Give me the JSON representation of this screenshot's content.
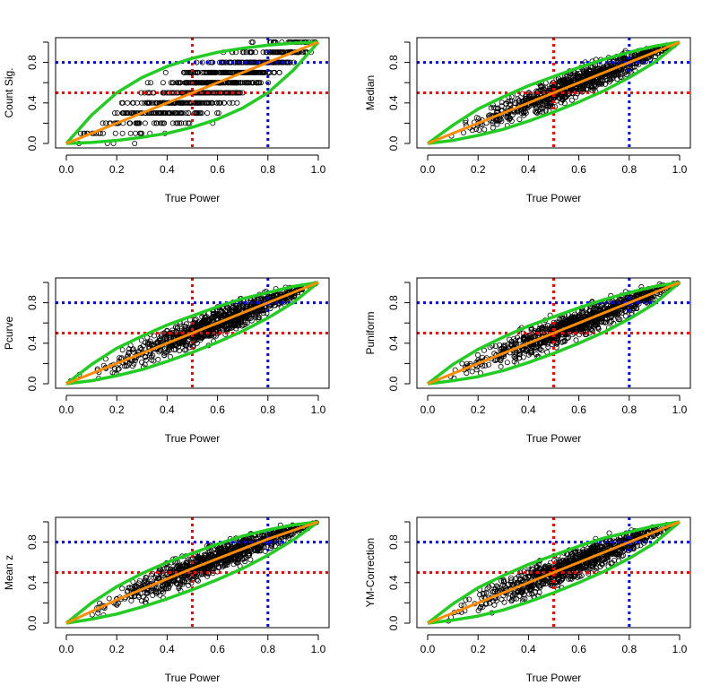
{
  "figure": {
    "layout": "3 rows x 2 columns of scatter panels",
    "reference_lines": [
      {
        "axis": "x",
        "value": 0.5,
        "color": "#ff0000",
        "style": "dotted"
      },
      {
        "axis": "x",
        "value": 0.8,
        "color": "#0000ff",
        "style": "dotted"
      },
      {
        "axis": "y",
        "value": 0.5,
        "color": "#ff0000",
        "style": "dotted"
      },
      {
        "axis": "y",
        "value": 0.8,
        "color": "#0000ff",
        "style": "dotted"
      }
    ],
    "colors": {
      "points": "#000000",
      "fit": "#ff8c00",
      "bounds": "#22cc22",
      "red_ref": "#ff0000",
      "blue_ref": "#0000ff"
    }
  },
  "chart_data": [
    {
      "type": "scatter",
      "title": "",
      "xlabel": "True Power",
      "ylabel": "Count Sig.",
      "xlim": [
        0,
        1
      ],
      "ylim": [
        0,
        1
      ],
      "xticks": [
        "0.0",
        "0.2",
        "0.4",
        "0.6",
        "0.8",
        "1.0"
      ],
      "yticks": [
        "0.0",
        "0.4",
        "0.8"
      ],
      "point_style": "discrete",
      "spread": 0.15,
      "fit_line": [
        [
          0,
          0
        ],
        [
          1,
          1
        ]
      ],
      "upper_bound": [
        [
          0,
          0
        ],
        [
          0.1,
          0.28
        ],
        [
          0.2,
          0.5
        ],
        [
          0.3,
          0.65
        ],
        [
          0.4,
          0.76
        ],
        [
          0.5,
          0.84
        ],
        [
          0.6,
          0.9
        ],
        [
          0.7,
          0.94
        ],
        [
          0.8,
          0.97
        ],
        [
          0.9,
          0.99
        ],
        [
          1,
          1
        ]
      ],
      "lower_bound": [
        [
          0,
          0
        ],
        [
          0.1,
          0.01
        ],
        [
          0.2,
          0.03
        ],
        [
          0.3,
          0.06
        ],
        [
          0.4,
          0.1
        ],
        [
          0.5,
          0.16
        ],
        [
          0.6,
          0.24
        ],
        [
          0.7,
          0.35
        ],
        [
          0.8,
          0.5
        ],
        [
          0.9,
          0.72
        ],
        [
          1,
          1
        ]
      ]
    },
    {
      "type": "scatter",
      "title": "",
      "xlabel": "True Power",
      "ylabel": "Median",
      "xlim": [
        0,
        1
      ],
      "ylim": [
        0,
        1
      ],
      "xticks": [
        "0.0",
        "0.2",
        "0.4",
        "0.6",
        "0.8",
        "1.0"
      ],
      "yticks": [
        "0.0",
        "0.4",
        "0.8"
      ],
      "point_style": "continuous",
      "spread": 0.1,
      "fit_line": [
        [
          0,
          0
        ],
        [
          1,
          1
        ]
      ],
      "upper_bound": [
        [
          0,
          0
        ],
        [
          0.1,
          0.18
        ],
        [
          0.2,
          0.34
        ],
        [
          0.3,
          0.46
        ],
        [
          0.4,
          0.57
        ],
        [
          0.5,
          0.66
        ],
        [
          0.6,
          0.75
        ],
        [
          0.7,
          0.83
        ],
        [
          0.8,
          0.9
        ],
        [
          0.9,
          0.96
        ],
        [
          1,
          1
        ]
      ],
      "lower_bound": [
        [
          0,
          0
        ],
        [
          0.1,
          0.03
        ],
        [
          0.2,
          0.08
        ],
        [
          0.3,
          0.14
        ],
        [
          0.4,
          0.22
        ],
        [
          0.5,
          0.31
        ],
        [
          0.6,
          0.41
        ],
        [
          0.7,
          0.52
        ],
        [
          0.8,
          0.65
        ],
        [
          0.9,
          0.8
        ],
        [
          1,
          1
        ]
      ]
    },
    {
      "type": "scatter",
      "title": "",
      "xlabel": "True Power",
      "ylabel": "Pcurve",
      "xlim": [
        0,
        1
      ],
      "ylim": [
        0,
        1
      ],
      "xticks": [
        "0.0",
        "0.2",
        "0.4",
        "0.6",
        "0.8",
        "1.0"
      ],
      "yticks": [
        "0.0",
        "0.4",
        "0.8"
      ],
      "point_style": "continuous",
      "spread": 0.1,
      "fit_line": [
        [
          0,
          0
        ],
        [
          1,
          1
        ]
      ],
      "upper_bound": [
        [
          0,
          0
        ],
        [
          0.1,
          0.19
        ],
        [
          0.2,
          0.35
        ],
        [
          0.3,
          0.47
        ],
        [
          0.4,
          0.58
        ],
        [
          0.5,
          0.67
        ],
        [
          0.6,
          0.76
        ],
        [
          0.7,
          0.84
        ],
        [
          0.8,
          0.9
        ],
        [
          0.9,
          0.96
        ],
        [
          1,
          1
        ]
      ],
      "lower_bound": [
        [
          0,
          0
        ],
        [
          0.1,
          0.03
        ],
        [
          0.2,
          0.08
        ],
        [
          0.3,
          0.14
        ],
        [
          0.4,
          0.22
        ],
        [
          0.5,
          0.31
        ],
        [
          0.6,
          0.41
        ],
        [
          0.7,
          0.52
        ],
        [
          0.8,
          0.65
        ],
        [
          0.9,
          0.8
        ],
        [
          1,
          1
        ]
      ]
    },
    {
      "type": "scatter",
      "title": "",
      "xlabel": "True Power",
      "ylabel": "Puniform",
      "xlim": [
        0,
        1
      ],
      "ylim": [
        0,
        1
      ],
      "xticks": [
        "0.0",
        "0.2",
        "0.4",
        "0.6",
        "0.8",
        "1.0"
      ],
      "yticks": [
        "0.0",
        "0.4",
        "0.8"
      ],
      "point_style": "continuous",
      "spread": 0.1,
      "fit_line": [
        [
          0,
          0
        ],
        [
          1,
          1
        ]
      ],
      "upper_bound": [
        [
          0,
          0
        ],
        [
          0.1,
          0.19
        ],
        [
          0.2,
          0.34
        ],
        [
          0.3,
          0.46
        ],
        [
          0.4,
          0.57
        ],
        [
          0.5,
          0.66
        ],
        [
          0.6,
          0.75
        ],
        [
          0.7,
          0.83
        ],
        [
          0.8,
          0.9
        ],
        [
          0.9,
          0.96
        ],
        [
          1,
          1
        ]
      ],
      "lower_bound": [
        [
          0,
          0
        ],
        [
          0.1,
          0.03
        ],
        [
          0.2,
          0.07
        ],
        [
          0.3,
          0.13
        ],
        [
          0.4,
          0.21
        ],
        [
          0.5,
          0.3
        ],
        [
          0.6,
          0.4
        ],
        [
          0.7,
          0.51
        ],
        [
          0.8,
          0.64
        ],
        [
          0.9,
          0.79
        ],
        [
          1,
          1
        ]
      ]
    },
    {
      "type": "scatter",
      "title": "",
      "xlabel": "True Power",
      "ylabel": "Mean z",
      "xlim": [
        0,
        1
      ],
      "ylim": [
        0,
        1
      ],
      "xticks": [
        "0.0",
        "0.2",
        "0.4",
        "0.6",
        "0.8",
        "1.0"
      ],
      "yticks": [
        "0.0",
        "0.4",
        "0.8"
      ],
      "point_style": "continuous",
      "spread": 0.1,
      "fit_line": [
        [
          0,
          0
        ],
        [
          0.2,
          0.23
        ],
        [
          0.5,
          0.54
        ],
        [
          0.8,
          0.83
        ],
        [
          1,
          1
        ]
      ],
      "upper_bound": [
        [
          0,
          0
        ],
        [
          0.1,
          0.2
        ],
        [
          0.2,
          0.36
        ],
        [
          0.3,
          0.49
        ],
        [
          0.4,
          0.6
        ],
        [
          0.5,
          0.69
        ],
        [
          0.6,
          0.78
        ],
        [
          0.7,
          0.86
        ],
        [
          0.8,
          0.92
        ],
        [
          0.9,
          0.97
        ],
        [
          1,
          1
        ]
      ],
      "lower_bound": [
        [
          0,
          0
        ],
        [
          0.1,
          0.04
        ],
        [
          0.2,
          0.09
        ],
        [
          0.3,
          0.16
        ],
        [
          0.4,
          0.24
        ],
        [
          0.5,
          0.33
        ],
        [
          0.6,
          0.43
        ],
        [
          0.7,
          0.54
        ],
        [
          0.8,
          0.67
        ],
        [
          0.9,
          0.82
        ],
        [
          1,
          1
        ]
      ]
    },
    {
      "type": "scatter",
      "title": "",
      "xlabel": "True Power",
      "ylabel": "YM-Correction",
      "xlim": [
        0,
        1
      ],
      "ylim": [
        0,
        1
      ],
      "xticks": [
        "0.0",
        "0.2",
        "0.4",
        "0.6",
        "0.8",
        "1.0"
      ],
      "yticks": [
        "0.0",
        "0.4",
        "0.8"
      ],
      "point_style": "continuous",
      "spread": 0.1,
      "fit_line": [
        [
          0,
          0
        ],
        [
          1,
          1
        ]
      ],
      "upper_bound": [
        [
          0,
          0
        ],
        [
          0.1,
          0.19
        ],
        [
          0.2,
          0.35
        ],
        [
          0.3,
          0.47
        ],
        [
          0.4,
          0.58
        ],
        [
          0.5,
          0.67
        ],
        [
          0.6,
          0.76
        ],
        [
          0.7,
          0.84
        ],
        [
          0.8,
          0.9
        ],
        [
          0.9,
          0.96
        ],
        [
          1,
          1
        ]
      ],
      "lower_bound": [
        [
          0,
          0
        ],
        [
          0.1,
          0.03
        ],
        [
          0.2,
          0.07
        ],
        [
          0.3,
          0.13
        ],
        [
          0.4,
          0.21
        ],
        [
          0.5,
          0.3
        ],
        [
          0.6,
          0.4
        ],
        [
          0.7,
          0.51
        ],
        [
          0.8,
          0.64
        ],
        [
          0.9,
          0.79
        ],
        [
          1,
          1
        ]
      ]
    }
  ]
}
